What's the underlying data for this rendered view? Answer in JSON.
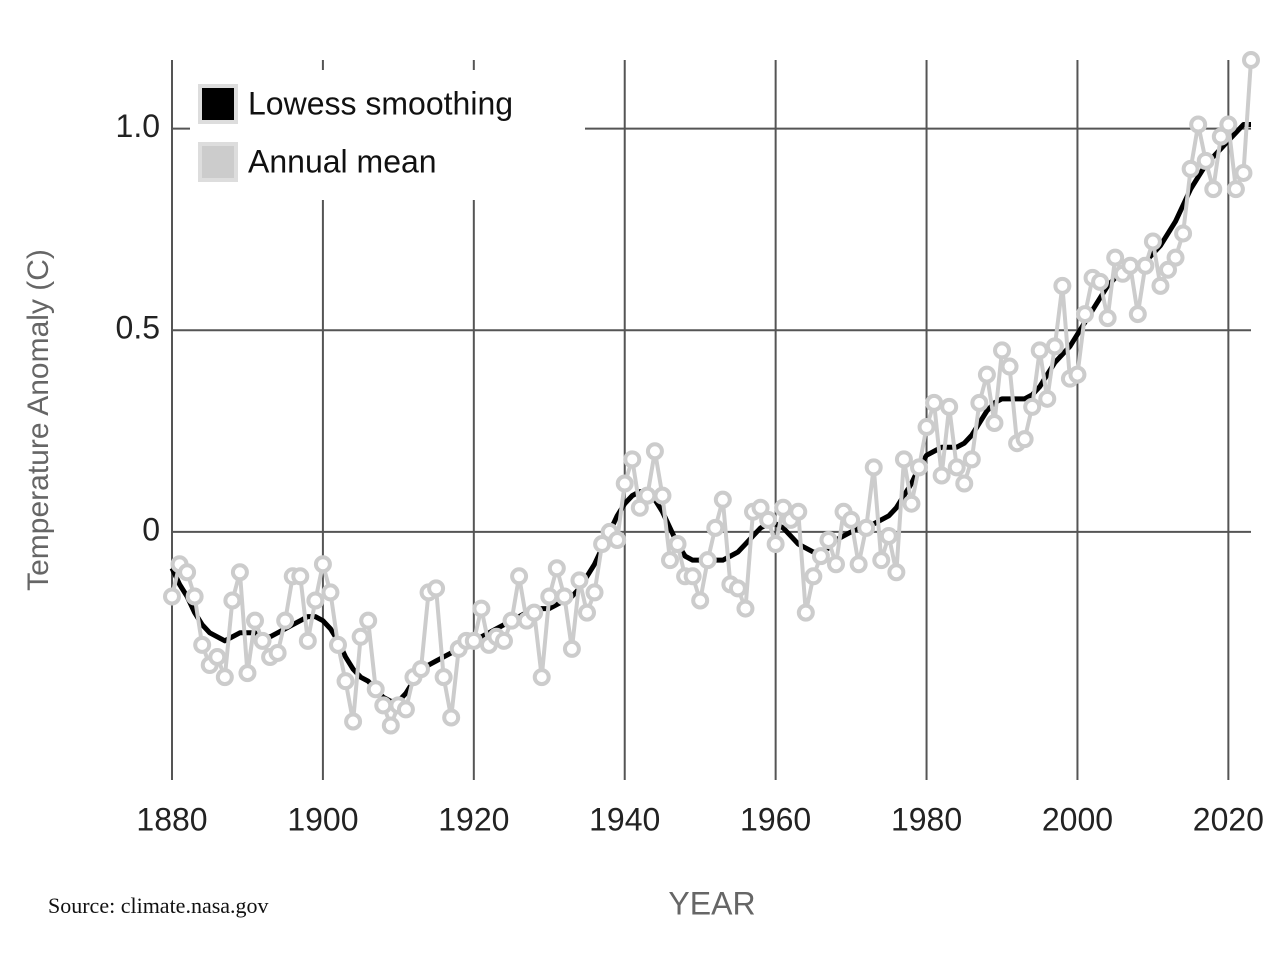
{
  "chart_data": {
    "type": "line",
    "x_label": "YEAR",
    "y_label": "Temperature Anomaly (C)",
    "source": "Source: climate.nasa.gov",
    "x": [
      1880,
      1881,
      1882,
      1883,
      1884,
      1885,
      1886,
      1887,
      1888,
      1889,
      1890,
      1891,
      1892,
      1893,
      1894,
      1895,
      1896,
      1897,
      1898,
      1899,
      1900,
      1901,
      1902,
      1903,
      1904,
      1905,
      1906,
      1907,
      1908,
      1909,
      1910,
      1911,
      1912,
      1913,
      1914,
      1915,
      1916,
      1917,
      1918,
      1919,
      1920,
      1921,
      1922,
      1923,
      1924,
      1925,
      1926,
      1927,
      1928,
      1929,
      1930,
      1931,
      1932,
      1933,
      1934,
      1935,
      1936,
      1937,
      1938,
      1939,
      1940,
      1941,
      1942,
      1943,
      1944,
      1945,
      1946,
      1947,
      1948,
      1949,
      1950,
      1951,
      1952,
      1953,
      1954,
      1955,
      1956,
      1957,
      1958,
      1959,
      1960,
      1961,
      1962,
      1963,
      1964,
      1965,
      1966,
      1967,
      1968,
      1969,
      1970,
      1971,
      1972,
      1973,
      1974,
      1975,
      1976,
      1977,
      1978,
      1979,
      1980,
      1981,
      1982,
      1983,
      1984,
      1985,
      1986,
      1987,
      1988,
      1989,
      1990,
      1991,
      1992,
      1993,
      1994,
      1995,
      1996,
      1997,
      1998,
      1999,
      2000,
      2001,
      2002,
      2003,
      2004,
      2005,
      2006,
      2007,
      2008,
      2009,
      2010,
      2011,
      2012,
      2013,
      2014,
      2015,
      2016,
      2017,
      2018,
      2019,
      2020,
      2021,
      2022,
      2023
    ],
    "series": [
      {
        "name": "Lowess smoothing",
        "color": "#000000",
        "values": [
          -0.09,
          -0.13,
          -0.16,
          -0.2,
          -0.23,
          -0.25,
          -0.26,
          -0.27,
          -0.26,
          -0.25,
          -0.25,
          -0.25,
          -0.26,
          -0.26,
          -0.25,
          -0.24,
          -0.23,
          -0.22,
          -0.21,
          -0.21,
          -0.22,
          -0.24,
          -0.27,
          -0.31,
          -0.34,
          -0.36,
          -0.37,
          -0.39,
          -0.41,
          -0.42,
          -0.42,
          -0.4,
          -0.37,
          -0.35,
          -0.33,
          -0.32,
          -0.31,
          -0.3,
          -0.29,
          -0.28,
          -0.27,
          -0.26,
          -0.25,
          -0.24,
          -0.23,
          -0.22,
          -0.21,
          -0.2,
          -0.19,
          -0.19,
          -0.19,
          -0.18,
          -0.17,
          -0.16,
          -0.14,
          -0.11,
          -0.08,
          -0.04,
          0,
          0.04,
          0.07,
          0.09,
          0.1,
          0.1,
          0.08,
          0.05,
          0.01,
          -0.03,
          -0.06,
          -0.07,
          -0.07,
          -0.07,
          -0.07,
          -0.07,
          -0.06,
          -0.05,
          -0.03,
          -0.01,
          0.01,
          0.02,
          0.02,
          0.01,
          -0.01,
          -0.03,
          -0.04,
          -0.05,
          -0.05,
          -0.04,
          -0.02,
          -0.01,
          0,
          0.01,
          0.01,
          0.02,
          0.03,
          0.04,
          0.06,
          0.09,
          0.12,
          0.16,
          0.19,
          0.2,
          0.21,
          0.21,
          0.21,
          0.22,
          0.24,
          0.27,
          0.3,
          0.32,
          0.33,
          0.33,
          0.33,
          0.33,
          0.34,
          0.36,
          0.39,
          0.42,
          0.44,
          0.46,
          0.49,
          0.52,
          0.55,
          0.58,
          0.61,
          0.63,
          0.64,
          0.65,
          0.66,
          0.67,
          0.69,
          0.71,
          0.74,
          0.77,
          0.81,
          0.85,
          0.88,
          0.91,
          0.93,
          0.95,
          0.97,
          0.99,
          1.01,
          1.01
        ]
      },
      {
        "name": "Annual mean",
        "color": "#cccccc",
        "values": [
          -0.16,
          -0.08,
          -0.1,
          -0.16,
          -0.28,
          -0.33,
          -0.31,
          -0.36,
          -0.17,
          -0.1,
          -0.35,
          -0.22,
          -0.27,
          -0.31,
          -0.3,
          -0.22,
          -0.11,
          -0.11,
          -0.27,
          -0.17,
          -0.08,
          -0.15,
          -0.28,
          -0.37,
          -0.47,
          -0.26,
          -0.22,
          -0.39,
          -0.43,
          -0.48,
          -0.43,
          -0.44,
          -0.36,
          -0.34,
          -0.15,
          -0.14,
          -0.36,
          -0.46,
          -0.29,
          -0.27,
          -0.27,
          -0.19,
          -0.28,
          -0.26,
          -0.27,
          -0.22,
          -0.11,
          -0.22,
          -0.2,
          -0.36,
          -0.16,
          -0.09,
          -0.16,
          -0.29,
          -0.12,
          -0.2,
          -0.15,
          -0.03,
          0,
          -0.02,
          0.12,
          0.18,
          0.06,
          0.09,
          0.2,
          0.09,
          -0.07,
          -0.03,
          -0.11,
          -0.11,
          -0.17,
          -0.07,
          0.01,
          0.08,
          -0.13,
          -0.14,
          -0.19,
          0.05,
          0.06,
          0.03,
          -0.03,
          0.06,
          0.03,
          0.05,
          -0.2,
          -0.11,
          -0.06,
          -0.02,
          -0.08,
          0.05,
          0.03,
          -0.08,
          0.01,
          0.16,
          -0.07,
          -0.01,
          -0.1,
          0.18,
          0.07,
          0.16,
          0.26,
          0.32,
          0.14,
          0.31,
          0.16,
          0.12,
          0.18,
          0.32,
          0.39,
          0.27,
          0.45,
          0.41,
          0.22,
          0.23,
          0.31,
          0.45,
          0.33,
          0.46,
          0.61,
          0.38,
          0.39,
          0.54,
          0.63,
          0.62,
          0.53,
          0.68,
          0.64,
          0.66,
          0.54,
          0.66,
          0.72,
          0.61,
          0.65,
          0.68,
          0.74,
          0.9,
          1.01,
          0.92,
          0.85,
          0.98,
          1.01,
          0.85,
          0.89,
          1.17
        ]
      }
    ],
    "xlim": [
      1880,
      2023
    ],
    "ylim": [
      -0.615,
      1.17
    ],
    "xticks": [
      1880,
      1900,
      1920,
      1940,
      1960,
      1980,
      2000,
      2020
    ],
    "yticks": [
      0,
      0.5,
      {
        "value": 1,
        "label": "1.0"
      }
    ],
    "grid": true,
    "legend": "upper left",
    "grid_color": "#555555"
  }
}
